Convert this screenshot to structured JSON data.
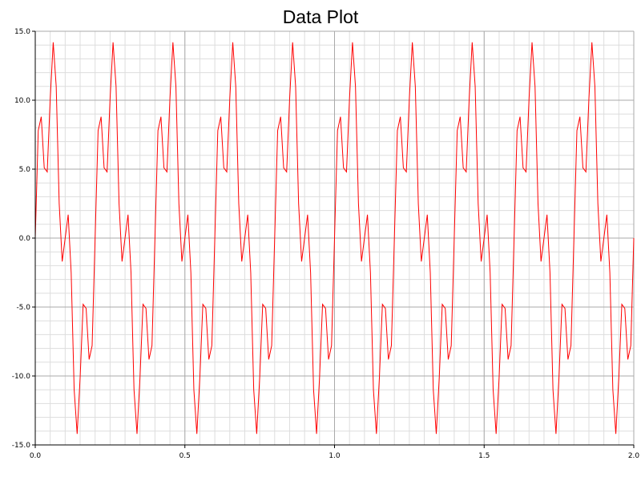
{
  "chart_data": {
    "type": "line",
    "title": "Data Plot",
    "xlabel": "",
    "ylabel": "",
    "xlim": [
      0.0,
      2.0
    ],
    "ylim": [
      -15.0,
      15.0
    ],
    "x_ticks": [
      "0.0",
      "0.5",
      "1.0",
      "1.5",
      "2.0"
    ],
    "y_ticks": [
      "15.0",
      "10.0",
      "5.0",
      "0.0",
      "-5.0",
      "-10.0",
      "-15.0"
    ],
    "grid": true,
    "legend": "none",
    "series": [
      {
        "color": "#ff0000",
        "x": [
          0.0,
          0.01,
          0.02,
          0.03,
          0.04,
          0.05,
          0.06,
          0.07,
          0.08,
          0.09,
          0.1,
          0.11,
          0.12,
          0.13,
          0.14,
          0.15,
          0.16,
          0.17,
          0.18,
          0.19,
          0.2
        ],
        "y": [
          0.0,
          7.8,
          8.8,
          5.1,
          4.8,
          10.1,
          14.2,
          11.0,
          2.5,
          -1.7,
          0.0,
          1.7,
          -2.5,
          -11.0,
          -14.2,
          -10.1,
          -4.8,
          -5.1,
          -8.8,
          -7.8,
          0.0
        ],
        "period": 0.2,
        "repeat_until": 2.0
      }
    ]
  }
}
